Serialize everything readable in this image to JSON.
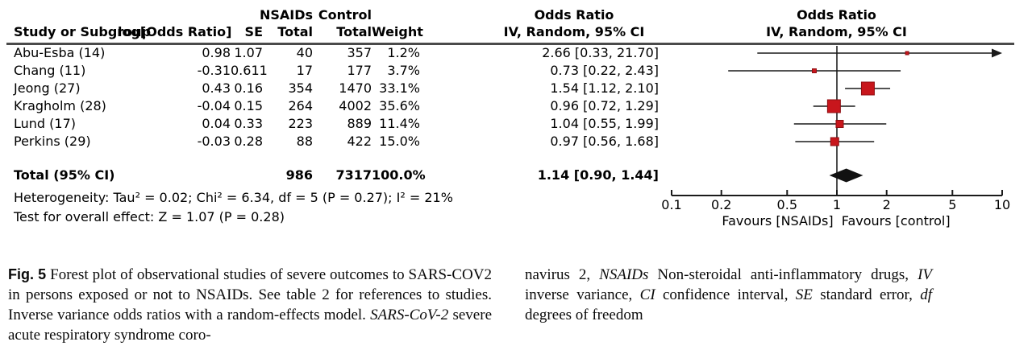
{
  "table": {
    "group_header": {
      "nsaids": "NSAIDs",
      "control": "Control"
    },
    "columns": {
      "study": "Study or Subgroup",
      "log_or": "log[Odds Ratio]",
      "se": "SE",
      "nsaids_total": "Total",
      "control_total": "Total",
      "weight": "Weight",
      "or_line1": "Odds Ratio",
      "or_line2": "IV, Random, 95% CI"
    },
    "plot_header": {
      "line1": "Odds Ratio",
      "line2": "IV, Random, 95% CI"
    },
    "rows": [
      {
        "study": "Abu-Esba (14)",
        "log_or": "0.98",
        "se": "1.07",
        "nsaids_total": "40",
        "control_total": "357",
        "weight": "1.2%",
        "ci": "2.66 [0.33, 21.70]"
      },
      {
        "study": "Chang (11)",
        "log_or": "-0.31",
        "se": "0.611",
        "nsaids_total": "17",
        "control_total": "177",
        "weight": "3.7%",
        "ci": "0.73 [0.22, 2.43]"
      },
      {
        "study": "Jeong (27)",
        "log_or": "0.43",
        "se": "0.16",
        "nsaids_total": "354",
        "control_total": "1470",
        "weight": "33.1%",
        "ci": "1.54 [1.12, 2.10]"
      },
      {
        "study": "Kragholm (28)",
        "log_or": "-0.04",
        "se": "0.15",
        "nsaids_total": "264",
        "control_total": "4002",
        "weight": "35.6%",
        "ci": "0.96 [0.72, 1.29]"
      },
      {
        "study": "Lund (17)",
        "log_or": "0.04",
        "se": "0.33",
        "nsaids_total": "223",
        "control_total": "889",
        "weight": "11.4%",
        "ci": "1.04 [0.55, 1.99]"
      },
      {
        "study": "Perkins (29)",
        "log_or": "-0.03",
        "se": "0.28",
        "nsaids_total": "88",
        "control_total": "422",
        "weight": "15.0%",
        "ci": "0.97 [0.56, 1.68]"
      }
    ],
    "total": {
      "label": "Total (95% CI)",
      "nsaids_total": "986",
      "control_total": "7317",
      "weight": "100.0%",
      "ci": "1.14 [0.90, 1.44]"
    },
    "heterogeneity": "Heterogeneity: Tau² = 0.02; Chi² = 6.34, df = 5 (P = 0.27); I² = 21%",
    "overall_effect": "Test for overall effect: Z = 1.07 (P = 0.28)"
  },
  "chart_data": {
    "type": "forest",
    "x_scale": "log10",
    "x_range": [
      0.1,
      10
    ],
    "x_ticks": [
      0.1,
      0.2,
      0.5,
      1,
      2,
      5,
      10
    ],
    "null_line": 1,
    "x_axis_label": "Favours [NSAIDs]  Favours [control]",
    "effect_measure": "Odds Ratio, IV, Random, 95% CI",
    "marker_color": "#C8161C",
    "marker_edge_color": "#8F0E12",
    "diamond_color": "#111111",
    "studies": [
      {
        "name": "Abu-Esba (14)",
        "or": 2.66,
        "ci_low": 0.33,
        "ci_high": 21.7,
        "weight_pct": 1.2
      },
      {
        "name": "Chang (11)",
        "or": 0.73,
        "ci_low": 0.22,
        "ci_high": 2.43,
        "weight_pct": 3.7
      },
      {
        "name": "Jeong (27)",
        "or": 1.54,
        "ci_low": 1.12,
        "ci_high": 2.1,
        "weight_pct": 33.1
      },
      {
        "name": "Kragholm (28)",
        "or": 0.96,
        "ci_low": 0.72,
        "ci_high": 1.29,
        "weight_pct": 35.6
      },
      {
        "name": "Lund (17)",
        "or": 1.04,
        "ci_low": 0.55,
        "ci_high": 1.99,
        "weight_pct": 11.4
      },
      {
        "name": "Perkins (29)",
        "or": 0.97,
        "ci_low": 0.56,
        "ci_high": 1.68,
        "weight_pct": 15.0
      }
    ],
    "total": {
      "name": "Total (95% CI)",
      "or": 1.14,
      "ci_low": 0.9,
      "ci_high": 1.44,
      "weight_pct": 100.0
    }
  },
  "caption": {
    "left_segments": [
      {
        "text": "Fig. 5",
        "style": "label"
      },
      {
        "text": "  Forest plot of observational studies of severe outcomes to SARS-COV2 in persons exposed or not to NSAIDs. See table 2 for references to studies. Inverse variance odds ratios with a random-effects model. ",
        "style": "normal"
      },
      {
        "text": "SARS-CoV-2",
        "style": "italic"
      },
      {
        "text": " severe acute respiratory syndrome coro-",
        "style": "normal"
      }
    ],
    "right_segments": [
      {
        "text": "navirus 2, ",
        "style": "normal"
      },
      {
        "text": "NSAIDs",
        "style": "italic"
      },
      {
        "text": " Non-steroidal anti-inflammatory drugs, ",
        "style": "normal"
      },
      {
        "text": "IV",
        "style": "italic"
      },
      {
        "text": " inverse variance, ",
        "style": "normal"
      },
      {
        "text": "CI",
        "style": "italic"
      },
      {
        "text": " confidence interval, ",
        "style": "normal"
      },
      {
        "text": "SE",
        "style": "italic"
      },
      {
        "text": " standard error, ",
        "style": "normal"
      },
      {
        "text": "df",
        "style": "italic"
      },
      {
        "text": " degrees of freedom",
        "style": "normal"
      }
    ]
  }
}
